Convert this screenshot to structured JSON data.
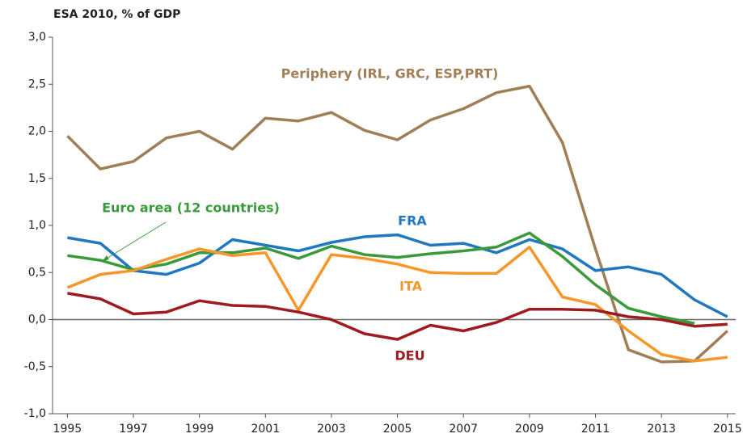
{
  "chart_data": {
    "type": "line",
    "title": "ESA 2010, % of GDP",
    "x": [
      1995,
      1996,
      1997,
      1998,
      1999,
      2000,
      2001,
      2002,
      2003,
      2004,
      2005,
      2006,
      2007,
      2008,
      2009,
      2010,
      2011,
      2012,
      2013,
      2014,
      2015
    ],
    "series": [
      {
        "name": "Periphery (IRL, GRC, ESP,PRT)",
        "color": "#a07f56",
        "values": [
          1.95,
          1.6,
          1.68,
          1.93,
          2.0,
          1.81,
          2.14,
          2.11,
          2.2,
          2.01,
          1.91,
          2.12,
          2.24,
          2.41,
          2.48,
          1.88,
          0.75,
          -0.32,
          -0.45,
          -0.44,
          -0.12
        ]
      },
      {
        "name": "FRA",
        "color": "#1f78c1",
        "values": [
          0.87,
          0.81,
          0.52,
          0.48,
          0.6,
          0.85,
          0.79,
          0.73,
          0.82,
          0.88,
          0.9,
          0.79,
          0.81,
          0.71,
          0.85,
          0.75,
          0.52,
          0.56,
          0.48,
          0.21,
          0.03
        ]
      },
      {
        "name": "Euro area (12 countries)",
        "color": "#3a9a3a",
        "values": [
          0.68,
          0.63,
          0.53,
          0.59,
          0.71,
          0.71,
          0.76,
          0.65,
          0.78,
          0.69,
          0.66,
          0.7,
          0.73,
          0.77,
          0.92,
          0.67,
          0.37,
          0.12,
          0.03,
          -0.04,
          null
        ]
      },
      {
        "name": "ITA",
        "color": "#f7962a",
        "values": [
          0.34,
          0.48,
          0.52,
          0.64,
          0.75,
          0.68,
          0.71,
          0.1,
          0.69,
          0.65,
          0.59,
          0.5,
          0.49,
          0.49,
          0.77,
          0.24,
          0.16,
          -0.12,
          -0.37,
          -0.44,
          -0.4
        ]
      },
      {
        "name": "DEU",
        "color": "#9e1b20",
        "values": [
          0.28,
          0.22,
          0.06,
          0.08,
          0.2,
          0.15,
          0.14,
          0.08,
          0.0,
          -0.15,
          -0.21,
          -0.06,
          -0.12,
          -0.03,
          0.11,
          0.11,
          0.1,
          0.03,
          0.0,
          -0.07,
          -0.05
        ]
      }
    ],
    "xlim": [
      1994.55,
      2015.25
    ],
    "xticks": [
      1995,
      1997,
      1999,
      2001,
      2003,
      2005,
      2007,
      2009,
      2011,
      2013,
      2015
    ],
    "ylim": [
      -1,
      3
    ],
    "yticks": [
      {
        "value": -1,
        "label": "-1,0"
      },
      {
        "value": -0.5,
        "label": "-0,5"
      },
      {
        "value": 0,
        "label": "0,0"
      },
      {
        "value": 0.5,
        "label": "0,5"
      },
      {
        "value": 1,
        "label": "1,0"
      },
      {
        "value": 1.5,
        "label": "1,5"
      },
      {
        "value": 2,
        "label": "2,0"
      },
      {
        "value": 2.5,
        "label": "2,5"
      },
      {
        "value": 3,
        "label": "3,0"
      }
    ],
    "grid": false
  }
}
